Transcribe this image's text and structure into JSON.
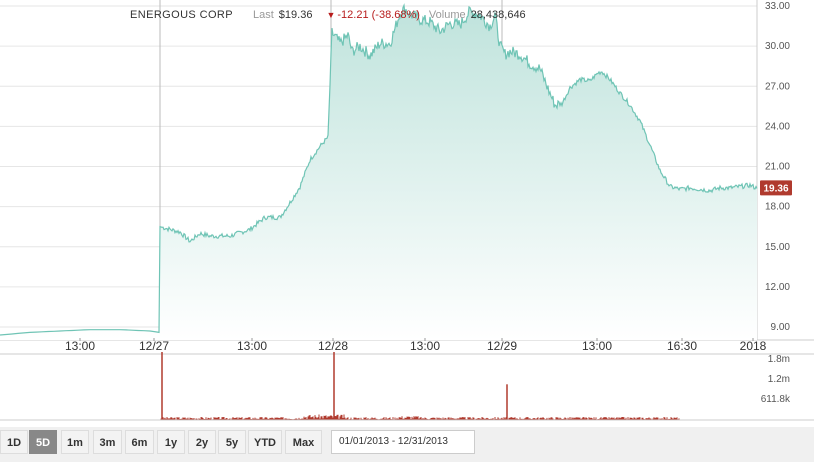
{
  "header": {
    "company": "ENERGOUS CORP",
    "last_label": "Last",
    "last_value": "$19.36",
    "change_arrow": "▼",
    "change_value": "-12.21 (-38.68%)",
    "volume_label": "Volume",
    "volume_value": "28,438,646"
  },
  "ranges": [
    "1D",
    "5D",
    "1m",
    "3m",
    "6m",
    "1y",
    "2y",
    "5y",
    "YTD",
    "Max"
  ],
  "selected_range": "5D",
  "date_range": "01/01/2013 - 12/31/2013",
  "colors": {
    "line": "#6fc4b5",
    "area_top": "#bfe3dc",
    "area_bottom": "#ffffff",
    "volume": "#b03a2e",
    "badge": "#b03a2e",
    "grid": "#e6e6e6"
  },
  "chart_data": [
    {
      "type": "area",
      "y_ticks": [
        "33.00",
        "30.00",
        "27.00",
        "24.00",
        "21.00",
        "18.00",
        "15.00",
        "12.00",
        "9.00"
      ],
      "ylim": [
        8.5,
        33.3
      ],
      "x_labels": [
        "13:00",
        "12/27",
        "13:00",
        "12/28",
        "13:00",
        "12/29",
        "13:00",
        "16:30",
        "2018"
      ],
      "last_price_label": "19.36",
      "x": [
        0,
        30,
        60,
        90,
        120,
        150,
        159,
        160,
        165,
        180,
        190,
        200,
        210,
        230,
        250,
        265,
        280,
        290,
        300,
        310,
        320,
        328,
        332,
        340,
        348,
        352,
        360,
        370,
        380,
        390,
        395,
        400,
        405,
        410,
        420,
        430,
        440,
        450,
        460,
        470,
        480,
        490,
        495,
        500,
        505,
        510,
        520,
        530,
        540,
        548,
        555,
        562,
        570,
        580,
        590,
        598,
        602,
        610,
        620,
        630,
        640,
        650,
        660,
        670,
        680,
        690,
        700,
        710,
        720,
        730,
        740,
        750,
        757
      ],
      "y": [
        8.4,
        8.6,
        8.7,
        8.8,
        8.8,
        8.7,
        8.6,
        16.5,
        16.4,
        16.1,
        15.4,
        16.0,
        15.8,
        15.8,
        16.3,
        17.2,
        17.2,
        18.3,
        19.5,
        21.5,
        22.5,
        23.2,
        31.0,
        30.2,
        30.8,
        29.6,
        30.0,
        29.3,
        30.2,
        30.2,
        31.3,
        32.5,
        32.8,
        32.4,
        32.0,
        31.8,
        31.1,
        31.7,
        31.6,
        32.6,
        32.3,
        31.5,
        32.3,
        30.0,
        29.4,
        29.6,
        29.4,
        28.7,
        28.3,
        26.8,
        25.6,
        25.7,
        26.9,
        27.5,
        27.4,
        28.0,
        28.1,
        27.5,
        26.5,
        25.6,
        24.4,
        22.6,
        20.7,
        19.5,
        19.3,
        19.4,
        19.3,
        19.2,
        19.4,
        19.4,
        19.5,
        19.6,
        19.36
      ]
    },
    {
      "type": "bar",
      "y_ticks": [
        "1.8m",
        "1.2m",
        "611.8k"
      ],
      "ylim": [
        0,
        2000000
      ],
      "x_labels": [],
      "spikes": [
        {
          "x": 162,
          "value": 2000000
        },
        {
          "x": 334,
          "value": 2000000
        },
        {
          "x": 507,
          "value": 1050000
        }
      ],
      "baseline_volume": 60000
    }
  ]
}
